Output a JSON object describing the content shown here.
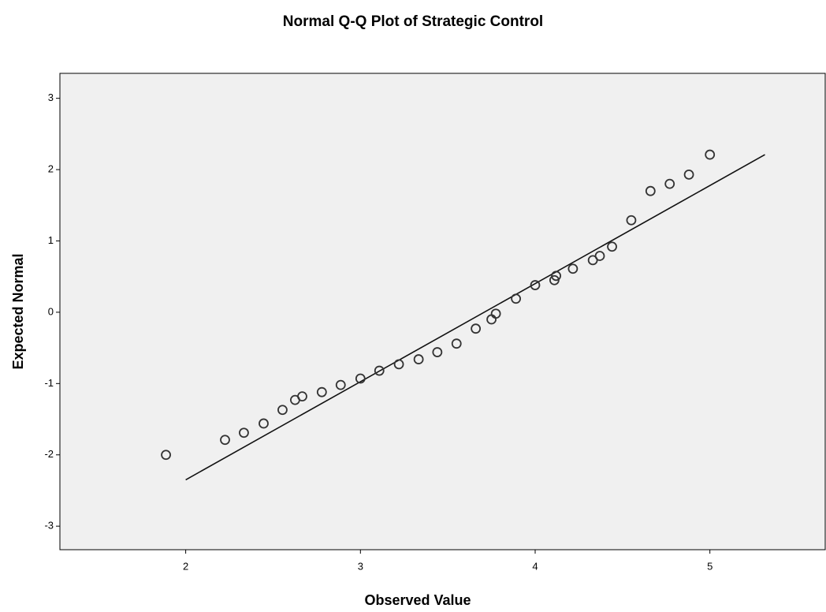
{
  "chart_data": {
    "type": "scatter",
    "title": "Normal Q-Q Plot of Strategic Control",
    "x_label": "Observed Value",
    "y_label": "Expected Normal",
    "xlim": [
      1.28,
      5.66
    ],
    "ylim": [
      -3.33,
      3.35
    ],
    "xticks": [
      2,
      3,
      4,
      5
    ],
    "yticks": [
      -3,
      -2,
      -1,
      0,
      1,
      2,
      3
    ],
    "color": "#333333",
    "background": "#f0f0f0",
    "x": [
      1.887,
      2.225,
      2.333,
      2.446,
      2.554,
      2.626,
      2.667,
      2.779,
      2.887,
      3.0,
      3.108,
      3.22,
      3.333,
      3.44,
      3.55,
      3.66,
      3.75,
      3.775,
      3.89,
      4.0,
      4.11,
      4.12,
      4.216,
      4.33,
      4.37,
      4.44,
      4.55,
      4.66,
      4.77,
      4.88,
      5.0
    ],
    "y": [
      -2.0,
      -1.79,
      -1.69,
      -1.56,
      -1.37,
      -1.23,
      -1.18,
      -1.12,
      -1.02,
      -0.93,
      -0.82,
      -0.73,
      -0.66,
      -0.56,
      -0.44,
      -0.23,
      -0.1,
      -0.02,
      0.19,
      0.38,
      0.45,
      0.51,
      0.61,
      0.73,
      0.79,
      0.92,
      1.29,
      1.7,
      1.8,
      1.93,
      2.21
    ],
    "reference_line": {
      "x": [
        2,
        5.315
      ],
      "y": [
        -2.35,
        2.21
      ]
    }
  }
}
